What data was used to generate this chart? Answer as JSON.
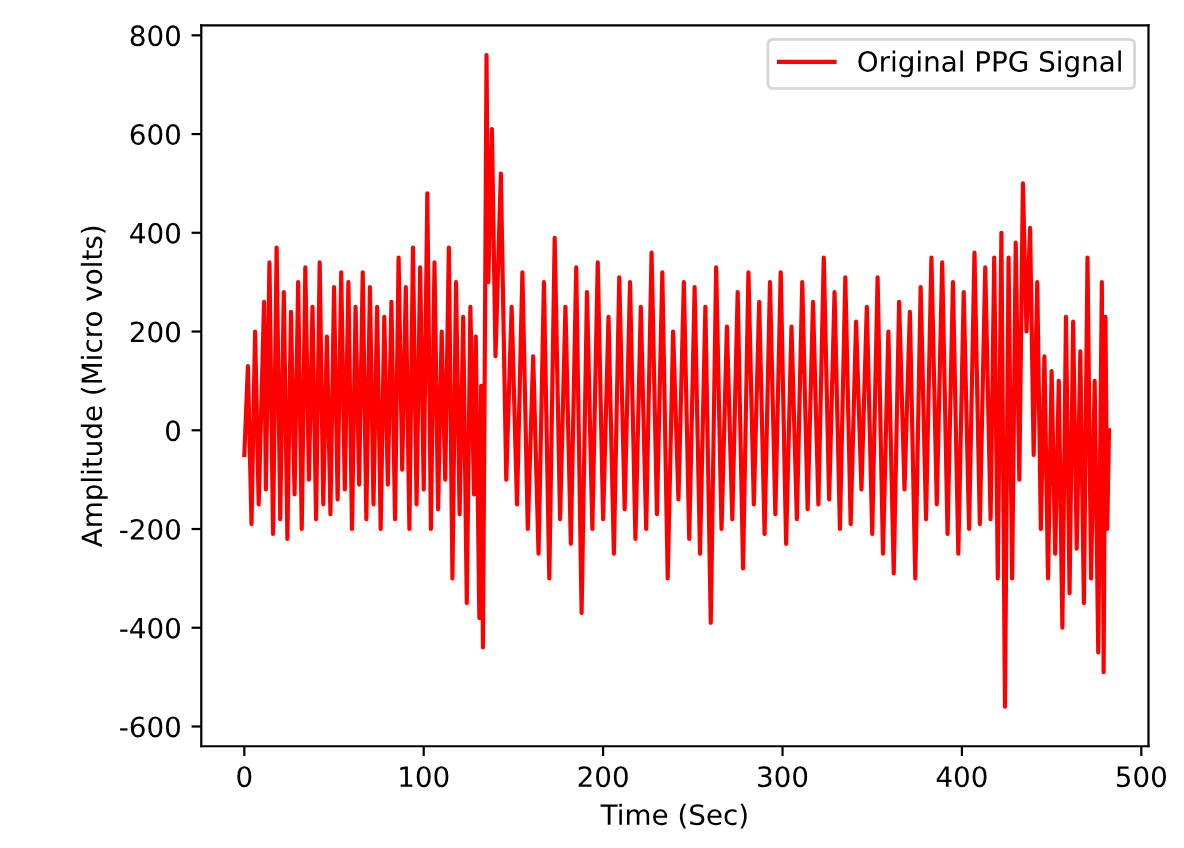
{
  "chart_data": {
    "type": "line",
    "xlabel": "Time (Sec)",
    "ylabel": "Amplitude (Micro volts)",
    "xlim": [
      -24,
      504
    ],
    "ylim": [
      -640,
      820
    ],
    "xticks": [
      0,
      100,
      200,
      300,
      400,
      500
    ],
    "yticks": [
      -600,
      -400,
      -200,
      0,
      200,
      400,
      600,
      800
    ],
    "legend": "top right",
    "grid": false,
    "series": [
      {
        "name": "Original PPG Signal",
        "color": "#ff0000",
        "x": [
          0,
          2,
          4,
          6,
          8,
          11,
          12,
          14,
          16,
          18,
          20,
          22,
          24,
          26,
          28,
          30,
          32,
          34,
          36,
          38,
          40,
          42,
          44,
          46,
          48,
          50,
          52,
          54,
          56,
          58,
          60,
          62,
          64,
          66,
          68,
          70,
          72,
          74,
          76,
          78,
          80,
          82,
          84,
          86,
          88,
          90,
          92,
          94,
          96,
          98,
          100,
          102,
          104,
          106,
          108,
          110,
          112,
          114,
          116,
          118,
          120,
          122,
          124,
          126,
          128,
          129,
          131,
          132,
          133,
          134,
          135,
          136,
          138,
          140,
          143,
          146,
          149,
          152,
          155,
          158,
          161,
          164,
          167,
          170,
          173,
          176,
          179,
          182,
          185,
          188,
          191,
          194,
          197,
          200,
          203,
          206,
          209,
          212,
          215,
          218,
          221,
          224,
          227,
          230,
          233,
          236,
          239,
          242,
          245,
          248,
          251,
          254,
          257,
          260,
          263,
          266,
          269,
          272,
          275,
          278,
          281,
          284,
          287,
          290,
          293,
          296,
          299,
          302,
          305,
          308,
          311,
          314,
          317,
          320,
          323,
          326,
          329,
          332,
          335,
          338,
          341,
          344,
          347,
          350,
          353,
          356,
          359,
          362,
          365,
          368,
          371,
          374,
          377,
          380,
          383,
          386,
          389,
          392,
          395,
          398,
          401,
          404,
          407,
          410,
          413,
          416,
          418,
          420,
          422,
          424,
          426,
          428,
          430,
          432,
          434,
          436,
          438,
          440,
          442,
          444,
          446,
          448,
          450,
          452,
          454,
          456,
          458,
          460,
          462,
          464,
          466,
          468,
          470,
          472,
          474,
          476,
          478,
          479,
          480,
          481,
          482
        ],
        "values": [
          -50,
          130,
          -190,
          200,
          -150,
          260,
          -120,
          340,
          -210,
          370,
          -180,
          280,
          -220,
          240,
          -130,
          300,
          -200,
          330,
          -100,
          250,
          -180,
          340,
          -150,
          190,
          -170,
          290,
          -140,
          320,
          -120,
          300,
          -200,
          250,
          -110,
          320,
          -180,
          290,
          -150,
          250,
          -200,
          230,
          -110,
          260,
          -180,
          350,
          -80,
          290,
          -200,
          370,
          -150,
          330,
          -120,
          480,
          -200,
          340,
          -160,
          200,
          -100,
          370,
          -300,
          300,
          -170,
          230,
          -350,
          250,
          -130,
          190,
          -380,
          90,
          -440,
          120,
          760,
          300,
          610,
          150,
          520,
          -100,
          250,
          -150,
          320,
          -200,
          150,
          -250,
          300,
          -300,
          390,
          -180,
          250,
          -230,
          330,
          -370,
          280,
          -200,
          340,
          -180,
          230,
          -250,
          310,
          -160,
          300,
          -220,
          250,
          -200,
          360,
          -170,
          320,
          -300,
          200,
          -140,
          300,
          -220,
          290,
          -250,
          250,
          -390,
          330,
          -200,
          210,
          -180,
          280,
          -280,
          320,
          -150,
          260,
          -210,
          300,
          -170,
          320,
          -230,
          210,
          -180,
          300,
          -160,
          260,
          -150,
          350,
          -140,
          280,
          -200,
          310,
          -190,
          220,
          -120,
          250,
          -210,
          310,
          -250,
          200,
          -290,
          260,
          -120,
          240,
          -300,
          290,
          -180,
          350,
          -150,
          340,
          -210,
          300,
          -250,
          280,
          -200,
          360,
          -190,
          330,
          -180,
          350,
          -300,
          400,
          -560,
          350,
          -300,
          380,
          -100,
          500,
          200,
          410,
          -50,
          300,
          -200,
          150,
          -300,
          120,
          -250,
          100,
          -400,
          230,
          -330,
          220,
          -240,
          160,
          -350,
          350,
          -300,
          100,
          -450,
          300,
          -490,
          230,
          -200,
          0
        ]
      }
    ]
  }
}
